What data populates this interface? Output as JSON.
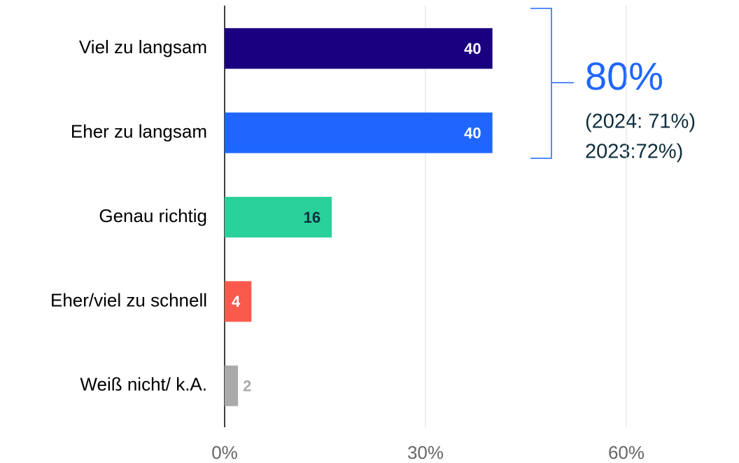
{
  "chart_data": {
    "type": "bar",
    "orientation": "horizontal",
    "categories": [
      "Viel zu langsam",
      "Eher zu langsam",
      "Genau richtig",
      "Eher/viel zu schnell",
      "Weiß nicht/ k.A."
    ],
    "values": [
      40,
      40,
      16,
      4,
      2
    ],
    "colors": [
      "#1a0080",
      "#1f66ff",
      "#2ad19a",
      "#fa5a4b",
      "#aaaaaa"
    ],
    "value_label_colors": [
      "#ffffff",
      "#ffffff",
      "#0f2d3c",
      "#ffffff",
      "#aaaaaa"
    ],
    "xlim": [
      0,
      60
    ],
    "xticks": [
      {
        "value": 0,
        "label": "0%"
      },
      {
        "value": 30,
        "label": "30%"
      },
      {
        "value": 60,
        "label": "60%"
      }
    ],
    "grid": true,
    "annotation": {
      "headline": "80%",
      "lines": [
        "(2024: 71%)",
        "2023:72%)"
      ]
    }
  }
}
